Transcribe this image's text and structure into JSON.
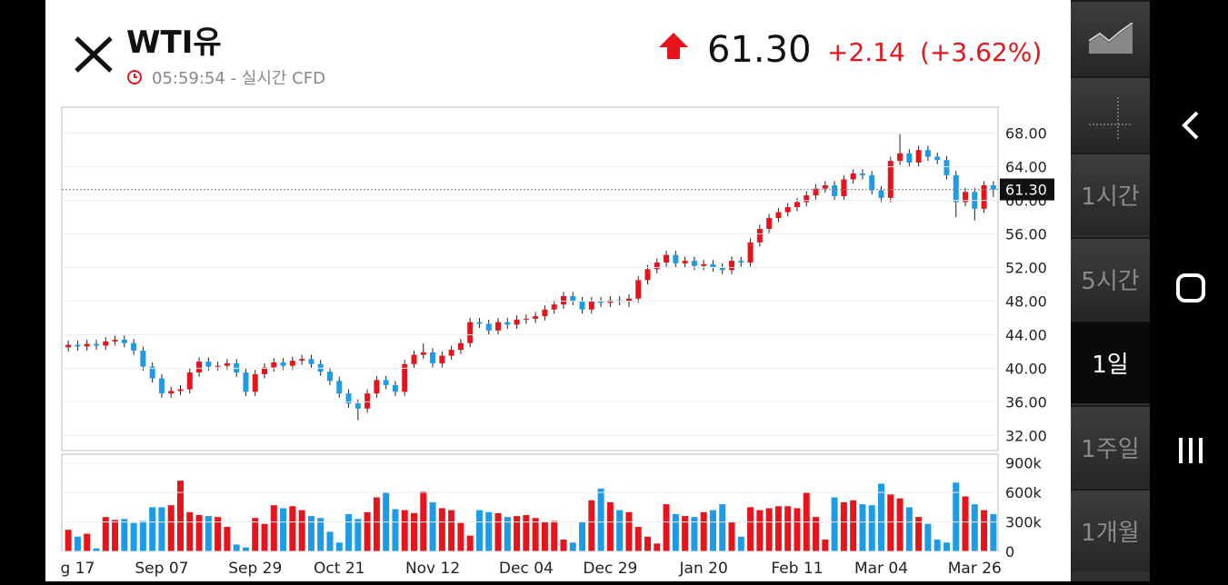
{
  "header": {
    "title": "WTI유",
    "time": "05:59:54 - 실시간 CFD",
    "price": "61.30",
    "change": "+2.14",
    "change_pct": "(+3.62%)"
  },
  "side_menu": {
    "items": [
      "1시간",
      "5시간",
      "1일",
      "1주일",
      "1개월"
    ],
    "selected": "1일"
  },
  "chart_data": [
    {
      "type": "candlestick",
      "up_color": "#e8141c",
      "down_color": "#1e9be8",
      "last_price": {
        "value": 61.3,
        "label": "61.30"
      },
      "categories": [
        null,
        "g 17",
        null,
        null,
        null,
        null,
        null,
        null,
        null,
        null,
        "Sep 07",
        null,
        null,
        null,
        null,
        null,
        null,
        null,
        null,
        null,
        "Sep 29",
        null,
        null,
        null,
        null,
        null,
        null,
        null,
        null,
        "Oct 21",
        null,
        null,
        null,
        null,
        null,
        null,
        null,
        null,
        null,
        "Nov 12",
        null,
        null,
        null,
        null,
        null,
        null,
        null,
        null,
        null,
        "Dec 04",
        null,
        null,
        null,
        null,
        null,
        null,
        null,
        null,
        "Dec 29",
        null,
        null,
        null,
        null,
        null,
        null,
        null,
        null,
        null,
        "Jan 20",
        null,
        null,
        null,
        null,
        null,
        null,
        null,
        null,
        null,
        "Feb 11",
        null,
        null,
        null,
        null,
        null,
        null,
        null,
        null,
        "Mar 04",
        null,
        null,
        null,
        null,
        null,
        null,
        null,
        null,
        null,
        "Mar 26",
        null,
        null
      ],
      "open": [
        42.5,
        42.8,
        42.6,
        42.9,
        42.7,
        43.2,
        43.4,
        43.0,
        42.1,
        40.2,
        38.8,
        37.0,
        37.3,
        37.5,
        39.5,
        40.8,
        40.2,
        40.3,
        40.6,
        39.5,
        37.2,
        39.3,
        40.1,
        40.7,
        40.3,
        40.9,
        41.1,
        40.5,
        39.6,
        38.5,
        37.0,
        35.8,
        35.2,
        37.0,
        38.6,
        38.0,
        37.2,
        40.5,
        41.6,
        41.9,
        40.6,
        41.5,
        42.2,
        43.0,
        45.5,
        45.3,
        44.5,
        45.5,
        45.2,
        45.8,
        45.9,
        46.2,
        47.0,
        47.6,
        48.6,
        48.0,
        47.0,
        48.0,
        47.8,
        48.1,
        48.0,
        48.3,
        50.5,
        51.8,
        52.6,
        53.5,
        52.5,
        52.8,
        52.2,
        52.4,
        52.0,
        51.7,
        52.8,
        52.6,
        55.0,
        56.6,
        57.9,
        58.6,
        59.2,
        59.8,
        60.6,
        61.4,
        61.8,
        60.5,
        62.5,
        63.2,
        63.0,
        61.2,
        60.3,
        64.7,
        65.6,
        64.5,
        66.0,
        65.2,
        64.8,
        63.0,
        59.8,
        61.0,
        59.0,
        61.8
      ],
      "high": [
        43.3,
        43.3,
        43.4,
        43.4,
        43.7,
        43.9,
        43.9,
        43.5,
        42.6,
        40.7,
        39.3,
        37.8,
        38.0,
        40.0,
        41.3,
        41.3,
        40.8,
        41.1,
        41.1,
        40.0,
        39.8,
        40.6,
        41.2,
        41.2,
        41.4,
        41.6,
        41.6,
        41.0,
        40.1,
        39.0,
        37.5,
        36.3,
        37.5,
        39.1,
        39.1,
        38.5,
        41.0,
        42.1,
        43.0,
        42.4,
        42.0,
        42.7,
        43.5,
        46.0,
        46.0,
        45.8,
        46.0,
        46.0,
        46.3,
        46.4,
        46.7,
        47.5,
        48.1,
        49.1,
        49.1,
        48.5,
        48.5,
        48.5,
        48.6,
        48.6,
        48.8,
        51.0,
        52.3,
        53.1,
        54.0,
        54.0,
        53.3,
        53.3,
        52.9,
        52.9,
        52.5,
        53.3,
        53.3,
        55.5,
        57.1,
        58.4,
        59.1,
        59.7,
        60.3,
        61.1,
        61.9,
        62.3,
        62.3,
        63.0,
        63.7,
        63.7,
        63.5,
        61.7,
        65.2,
        67.9,
        66.1,
        66.5,
        66.5,
        65.7,
        65.3,
        63.5,
        61.5,
        61.5,
        62.3,
        62.3
      ],
      "low": [
        42.0,
        42.1,
        42.1,
        42.2,
        42.2,
        42.7,
        42.5,
        41.6,
        39.7,
        38.3,
        36.5,
        36.5,
        36.8,
        37.0,
        39.0,
        39.7,
        39.7,
        39.8,
        39.0,
        36.7,
        36.7,
        38.8,
        39.6,
        39.8,
        39.8,
        40.4,
        40.0,
        39.1,
        38.0,
        36.5,
        35.3,
        33.8,
        34.7,
        36.5,
        37.5,
        36.7,
        36.7,
        40.0,
        41.1,
        40.1,
        40.1,
        41.0,
        41.7,
        42.5,
        44.8,
        44.0,
        44.0,
        44.7,
        44.7,
        45.3,
        45.4,
        45.7,
        46.5,
        47.1,
        47.5,
        46.5,
        46.5,
        47.3,
        47.3,
        47.5,
        47.3,
        47.8,
        50.0,
        51.3,
        52.1,
        52.0,
        52.0,
        51.7,
        51.7,
        51.5,
        51.2,
        51.2,
        52.1,
        52.1,
        54.5,
        56.1,
        57.4,
        58.1,
        58.7,
        59.3,
        60.1,
        60.9,
        60.0,
        60.0,
        62.0,
        62.5,
        60.7,
        59.8,
        59.8,
        64.2,
        64.0,
        64.0,
        64.7,
        64.3,
        62.5,
        58.0,
        59.3,
        57.6,
        58.5,
        60.4
      ],
      "close": [
        42.8,
        42.6,
        42.9,
        42.7,
        43.2,
        43.4,
        43.0,
        42.1,
        40.2,
        38.8,
        37.0,
        37.3,
        37.5,
        39.5,
        40.8,
        40.2,
        40.3,
        40.6,
        39.5,
        37.2,
        39.3,
        40.1,
        40.7,
        40.3,
        40.9,
        41.1,
        40.5,
        39.6,
        38.5,
        37.0,
        35.8,
        35.2,
        37.0,
        38.6,
        38.0,
        37.2,
        40.5,
        41.6,
        41.9,
        40.6,
        41.5,
        42.2,
        43.0,
        45.5,
        45.3,
        44.5,
        45.5,
        45.2,
        45.8,
        45.9,
        46.2,
        47.0,
        47.6,
        48.6,
        48.0,
        47.0,
        48.0,
        47.8,
        48.1,
        48.0,
        48.3,
        50.5,
        51.8,
        52.6,
        53.5,
        52.5,
        52.8,
        52.2,
        52.4,
        52.0,
        51.7,
        52.8,
        52.6,
        55.0,
        56.6,
        57.9,
        58.6,
        59.2,
        59.8,
        60.6,
        61.4,
        61.8,
        60.5,
        62.5,
        63.2,
        63.0,
        61.2,
        60.3,
        64.7,
        65.6,
        64.5,
        66.0,
        65.2,
        64.8,
        63.0,
        59.8,
        61.0,
        59.0,
        61.8,
        61.3
      ],
      "ylim": [
        30.2,
        71.1
      ],
      "yticks": [
        {
          "value": 32,
          "label": "32.00"
        },
        {
          "value": 36,
          "label": "36.00"
        },
        {
          "value": 40,
          "label": "40.00"
        },
        {
          "value": 44,
          "label": "44.00"
        },
        {
          "value": 48,
          "label": "48.00"
        },
        {
          "value": 52,
          "label": "52.00"
        },
        {
          "value": 56,
          "label": "56.00"
        },
        {
          "value": 60,
          "label": "60.00"
        },
        {
          "value": 64,
          "label": "64.00"
        },
        {
          "value": 68,
          "label": "68.00"
        }
      ],
      "grid": true
    },
    {
      "type": "bar",
      "values": [
        220000,
        150000,
        180000,
        30000,
        350000,
        320000,
        330000,
        290000,
        310000,
        450000,
        450000,
        470000,
        720000,
        400000,
        370000,
        360000,
        350000,
        250000,
        70000,
        40000,
        340000,
        280000,
        470000,
        440000,
        460000,
        420000,
        360000,
        340000,
        200000,
        90000,
        380000,
        330000,
        400000,
        550000,
        600000,
        430000,
        420000,
        390000,
        610000,
        500000,
        440000,
        420000,
        290000,
        160000,
        420000,
        400000,
        390000,
        350000,
        360000,
        370000,
        340000,
        300000,
        310000,
        120000,
        90000,
        300000,
        520000,
        640000,
        500000,
        420000,
        400000,
        250000,
        150000,
        80000,
        480000,
        380000,
        360000,
        350000,
        400000,
        420000,
        480000,
        300000,
        150000,
        450000,
        420000,
        440000,
        460000,
        460000,
        440000,
        600000,
        350000,
        120000,
        550000,
        500000,
        520000,
        480000,
        470000,
        690000,
        580000,
        540000,
        450000,
        350000,
        280000,
        120000,
        90000,
        700000,
        560000,
        480000,
        420000,
        380000
      ],
      "ylim": [
        0,
        990000
      ],
      "yticks": [
        0,
        {
          "value": 300000,
          "label": "300k"
        },
        {
          "value": 600000,
          "label": "600k"
        },
        {
          "value": 900000,
          "label": "900k"
        }
      ],
      "grid": true
    }
  ]
}
